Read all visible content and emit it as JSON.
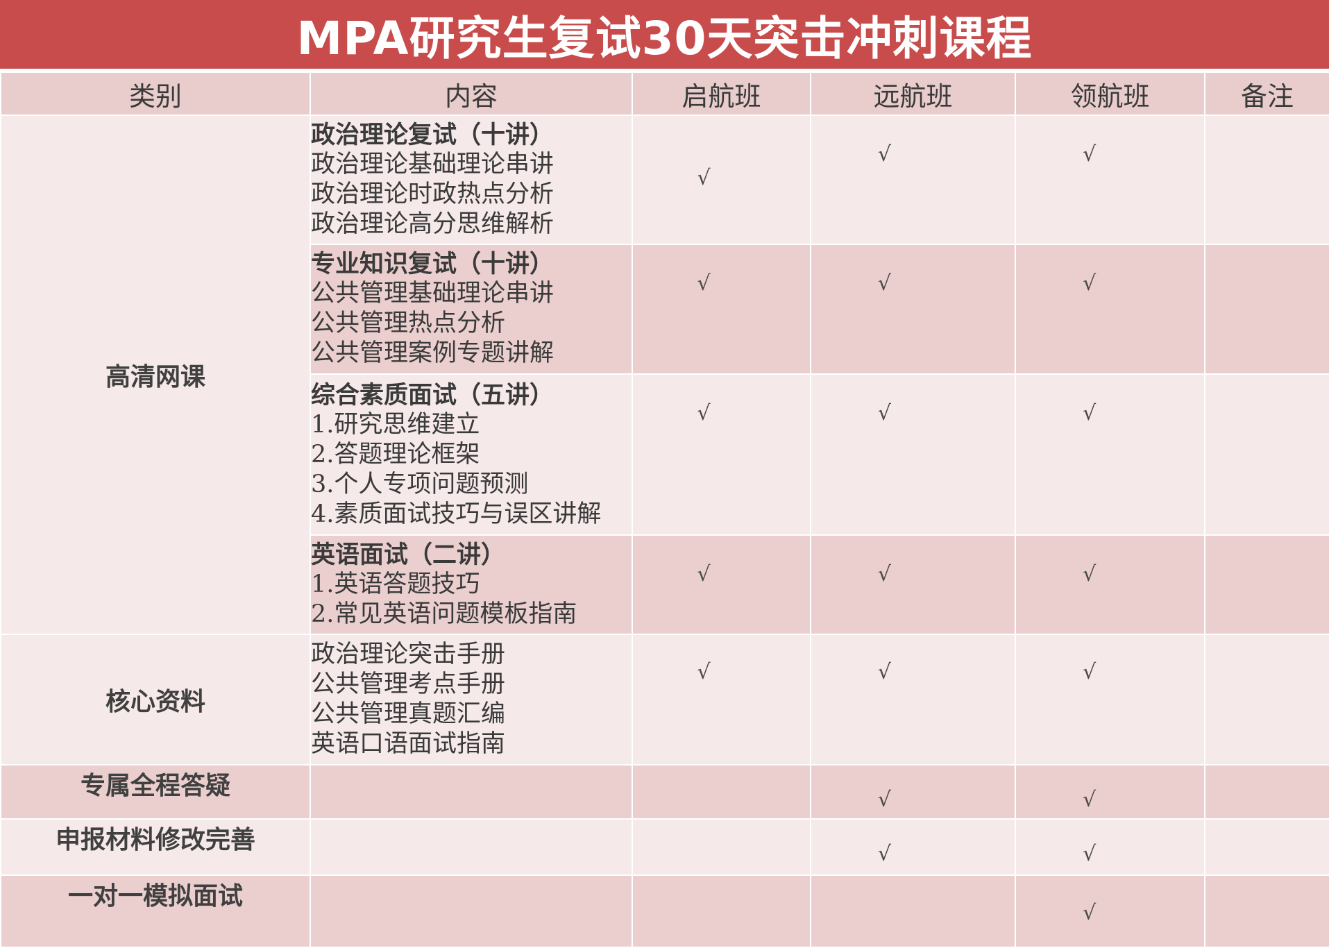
{
  "title": "MPA研究生复试30天突击冲刺课程",
  "headers": [
    "类别",
    "内容",
    "启航班",
    "远航班",
    "领航班",
    "备注"
  ],
  "check_mark": "√",
  "sections": [
    {
      "category": "高清网课",
      "items": [
        {
          "heading": "政治理论复试（十讲）",
          "lines": [
            "政治理论基础理论串讲",
            "政治理论时政热点分析",
            "政治理论高分思维解析"
          ],
          "qihang": true,
          "yuanhang": true,
          "linghang": true,
          "remark": ""
        },
        {
          "heading": "专业知识复试（十讲）",
          "lines": [
            "公共管理基础理论串讲",
            "公共管理热点分析",
            "公共管理案例专题讲解"
          ],
          "qihang": true,
          "yuanhang": true,
          "linghang": true,
          "remark": ""
        },
        {
          "heading": "综合素质面试（五讲）",
          "lines": [
            "1.研究思维建立",
            "2.答题理论框架",
            "3.个人专项问题预测",
            "4.素质面试技巧与误区讲解"
          ],
          "qihang": true,
          "yuanhang": true,
          "linghang": true,
          "remark": ""
        },
        {
          "heading": "英语面试（二讲）",
          "lines": [
            "1.英语答题技巧",
            "2.常见英语问题模板指南"
          ],
          "qihang": true,
          "yuanhang": true,
          "linghang": true,
          "remark": ""
        }
      ]
    },
    {
      "category": "核心资料",
      "items": [
        {
          "heading": "",
          "lines": [
            "政治理论突击手册",
            "公共管理考点手册",
            "公共管理真题汇编",
            "英语口语面试指南"
          ],
          "qihang": true,
          "yuanhang": true,
          "linghang": true,
          "remark": ""
        }
      ]
    },
    {
      "category": "专属全程答疑",
      "items": [
        {
          "heading": "",
          "lines": [],
          "qihang": false,
          "yuanhang": true,
          "linghang": true,
          "remark": ""
        }
      ]
    },
    {
      "category": "申报材料修改完善",
      "items": [
        {
          "heading": "",
          "lines": [],
          "qihang": false,
          "yuanhang": true,
          "linghang": true,
          "remark": ""
        }
      ]
    },
    {
      "category": "一对一模拟面试",
      "items": [
        {
          "heading": "",
          "lines": [],
          "qihang": false,
          "yuanhang": false,
          "linghang": true,
          "remark": ""
        }
      ]
    }
  ],
  "colors": {
    "title_bg": "#c84c4c",
    "header_bg": "#e9cdcd",
    "row_light": "#f6e9e9",
    "row_dark": "#ebcfcf"
  }
}
